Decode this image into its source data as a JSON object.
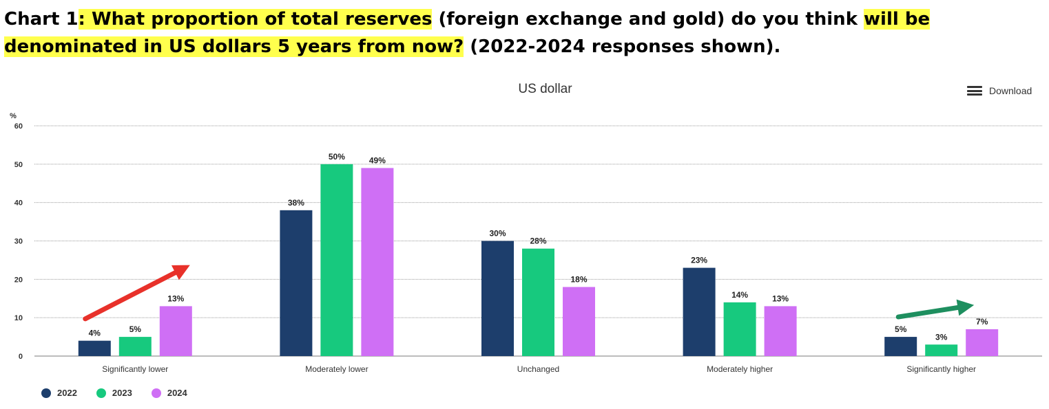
{
  "headline": {
    "prefix": "Chart 1",
    "part1": ": What proportion of total reserves",
    "part2": " (foreign exchange and gold) do you think ",
    "part3": "will be denominated in US dollars 5 years from now?",
    "part4": " (2022-2024 responses shown)."
  },
  "download": {
    "label": "Download",
    "icon": "menu-icon"
  },
  "colors": {
    "2022": "#1d3e6c",
    "2023": "#17c97e",
    "2024": "#cf6ff5",
    "highlight": "#ffff4d",
    "red_arrow": "#e8312a",
    "green_arrow": "#1e8f5f"
  },
  "chart_data": {
    "type": "bar",
    "title": "US dollar",
    "ylabel": "%",
    "ylim": [
      0,
      60
    ],
    "yticks": [
      0,
      10,
      20,
      30,
      40,
      50,
      60
    ],
    "categories": [
      "Significantly lower",
      "Moderately lower",
      "Unchanged",
      "Moderately higher",
      "Significantly higher"
    ],
    "series": [
      {
        "name": "2022",
        "color": "#1d3e6c",
        "values": [
          4,
          38,
          30,
          23,
          5
        ],
        "labels": [
          "4%",
          "38%",
          "30%",
          "23%",
          "5%"
        ]
      },
      {
        "name": "2023",
        "color": "#17c97e",
        "values": [
          5,
          50,
          28,
          14,
          3
        ],
        "labels": [
          "5%",
          "50%",
          "28%",
          "14%",
          "3%"
        ]
      },
      {
        "name": "2024",
        "color": "#cf6ff5",
        "values": [
          13,
          49,
          18,
          13,
          7
        ],
        "labels": [
          "13%",
          "49%",
          "18%",
          "13%",
          "7%"
        ]
      }
    ],
    "grid": true,
    "legend_position": "bottom-left",
    "annotations": [
      {
        "type": "arrow",
        "color": "red",
        "category": "Significantly lower",
        "direction": "increasing"
      },
      {
        "type": "arrow",
        "color": "green",
        "category": "Significantly higher",
        "direction": "increasing"
      }
    ]
  }
}
